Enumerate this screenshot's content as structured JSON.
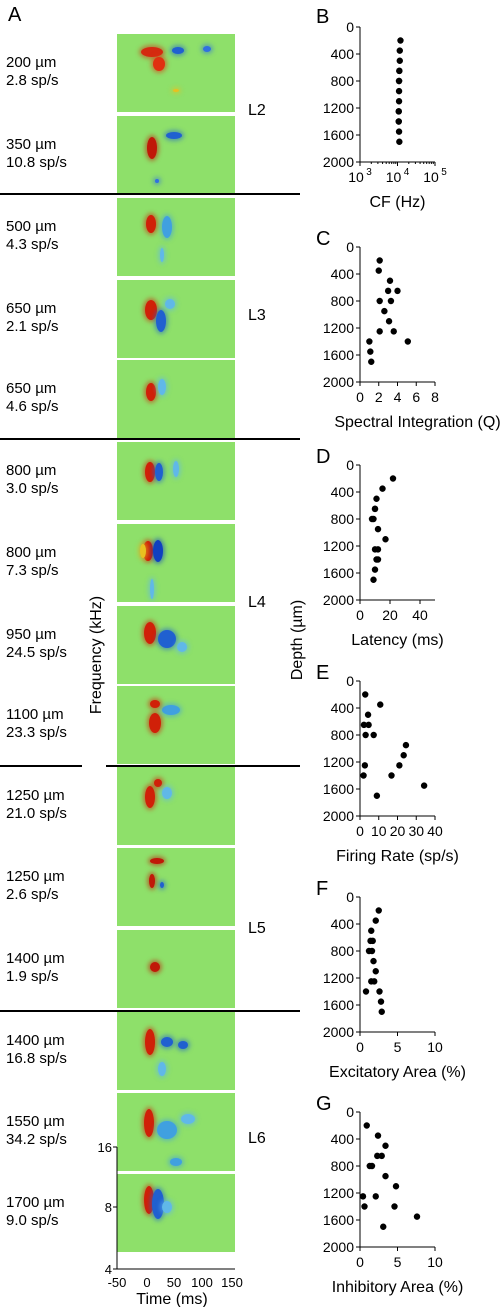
{
  "panel_letters": [
    "A",
    "B",
    "C",
    "D",
    "E",
    "F",
    "G"
  ],
  "layers": [
    "L2",
    "L3",
    "L4",
    "L5",
    "L6"
  ],
  "units": [
    {
      "depth": "200 µm",
      "rate": "2.8 sp/s"
    },
    {
      "depth": "350 µm",
      "rate": "10.8 sp/s"
    },
    {
      "depth": "500 µm",
      "rate": "4.3 sp/s"
    },
    {
      "depth": "650 µm",
      "rate": "2.1 sp/s"
    },
    {
      "depth": "650 µm",
      "rate": "4.6 sp/s"
    },
    {
      "depth": "800 µm",
      "rate": "3.0 sp/s"
    },
    {
      "depth": "800 µm",
      "rate": "7.3 sp/s"
    },
    {
      "depth": "950 µm",
      "rate": "24.5 sp/s"
    },
    {
      "depth": "1100 µm",
      "rate": "23.3 sp/s"
    },
    {
      "depth": "1250 µm",
      "rate": "21.0 sp/s"
    },
    {
      "depth": "1250 µm",
      "rate": "2.6 sp/s"
    },
    {
      "depth": "1400 µm",
      "rate": "1.9 sp/s"
    },
    {
      "depth": "1400 µm",
      "rate": "16.8 sp/s"
    },
    {
      "depth": "1550 µm",
      "rate": "34.2 sp/s"
    },
    {
      "depth": "1700 µm",
      "rate": "9.0 sp/s"
    }
  ],
  "strf_axes": {
    "ylabel": "Frequency (kHz)",
    "xlabel": "Time (ms)",
    "yticks": [
      "16",
      "8",
      "4"
    ],
    "xticks": [
      "-50",
      "0",
      "50",
      "100",
      "150"
    ]
  },
  "shared_ylabel": "Depth (µm)",
  "colors": {
    "strf_background": "#8ee06a",
    "excitation": "#d42a10",
    "inhibition": "#2060d0",
    "marker": "#000000"
  },
  "chart_data": [
    {
      "id": "B",
      "type": "scatter",
      "xlabel": "CF (Hz)",
      "ylabel": "Depth (µm)",
      "xscale": "log",
      "xlim": [
        1000,
        100000
      ],
      "ylim": [
        2000,
        0
      ],
      "xticks": [
        "10",
        "10",
        "10"
      ],
      "xtick_exps": [
        "3",
        "4",
        "5"
      ],
      "yticks": [
        "0",
        "400",
        "800",
        "1200",
        "1600",
        "2000"
      ],
      "points": [
        [
          12000,
          200
        ],
        [
          11500,
          350
        ],
        [
          11500,
          500
        ],
        [
          11200,
          650
        ],
        [
          11200,
          650
        ],
        [
          11000,
          800
        ],
        [
          11000,
          800
        ],
        [
          11000,
          950
        ],
        [
          11000,
          1100
        ],
        [
          10800,
          1250
        ],
        [
          10800,
          1250
        ],
        [
          10800,
          1400
        ],
        [
          10800,
          1400
        ],
        [
          11000,
          1550
        ],
        [
          11200,
          1700
        ]
      ]
    },
    {
      "id": "C",
      "type": "scatter",
      "xlabel": "Spectral Integration (Q)",
      "ylabel": "Depth (µm)",
      "xlim": [
        0,
        8
      ],
      "ylim": [
        2000,
        0
      ],
      "xticks": [
        "0",
        "2",
        "4",
        "6",
        "8"
      ],
      "yticks": [
        "0",
        "400",
        "800",
        "1200",
        "1600",
        "2000"
      ],
      "points": [
        [
          2.1,
          200
        ],
        [
          2.0,
          350
        ],
        [
          3.2,
          500
        ],
        [
          4.0,
          650
        ],
        [
          3.0,
          650
        ],
        [
          2.1,
          800
        ],
        [
          3.3,
          800
        ],
        [
          2.6,
          950
        ],
        [
          3.1,
          1100
        ],
        [
          2.1,
          1250
        ],
        [
          3.6,
          1250
        ],
        [
          1.0,
          1400
        ],
        [
          5.1,
          1400
        ],
        [
          1.1,
          1550
        ],
        [
          1.2,
          1700
        ]
      ]
    },
    {
      "id": "D",
      "type": "scatter",
      "xlabel": "Latency (ms)",
      "ylabel": "Depth (µm)",
      "xlim": [
        0,
        50
      ],
      "ylim": [
        2000,
        0
      ],
      "xticks": [
        "0",
        "20",
        "40"
      ],
      "yticks": [
        "0",
        "400",
        "800",
        "1200",
        "1600",
        "2000"
      ],
      "points": [
        [
          22,
          200
        ],
        [
          15,
          350
        ],
        [
          11,
          500
        ],
        [
          10,
          650
        ],
        [
          10,
          650
        ],
        [
          8,
          800
        ],
        [
          9,
          800
        ],
        [
          12,
          950
        ],
        [
          17,
          1100
        ],
        [
          12,
          1250
        ],
        [
          10,
          1250
        ],
        [
          11,
          1400
        ],
        [
          12,
          1400
        ],
        [
          10,
          1550
        ],
        [
          9,
          1700
        ]
      ]
    },
    {
      "id": "E",
      "type": "scatter",
      "xlabel": "Firing Rate (sp/s)",
      "ylabel": "Depth (µm)",
      "xlim": [
        0,
        40
      ],
      "ylim": [
        2000,
        0
      ],
      "xticks": [
        "0",
        "10",
        "20",
        "30",
        "40"
      ],
      "yticks": [
        "0",
        "400",
        "800",
        "1200",
        "1600",
        "2000"
      ],
      "points": [
        [
          2.8,
          200
        ],
        [
          10.8,
          350
        ],
        [
          4.3,
          500
        ],
        [
          2.1,
          650
        ],
        [
          4.6,
          650
        ],
        [
          3.0,
          800
        ],
        [
          7.3,
          800
        ],
        [
          24.5,
          950
        ],
        [
          23.3,
          1100
        ],
        [
          21.0,
          1250
        ],
        [
          2.6,
          1250
        ],
        [
          1.9,
          1400
        ],
        [
          16.8,
          1400
        ],
        [
          34.2,
          1550
        ],
        [
          9.0,
          1700
        ]
      ]
    },
    {
      "id": "F",
      "type": "scatter",
      "xlabel": "Excitatory Area (%)",
      "ylabel": "Depth (µm)",
      "xlim": [
        0,
        10
      ],
      "ylim": [
        2000,
        0
      ],
      "xticks": [
        "0",
        "5",
        "10"
      ],
      "yticks": [
        "0",
        "400",
        "800",
        "1200",
        "1600",
        "2000"
      ],
      "points": [
        [
          2.5,
          200
        ],
        [
          2.1,
          350
        ],
        [
          1.5,
          500
        ],
        [
          1.4,
          650
        ],
        [
          1.7,
          650
        ],
        [
          1.2,
          800
        ],
        [
          1.6,
          800
        ],
        [
          1.8,
          950
        ],
        [
          2.1,
          1100
        ],
        [
          1.5,
          1250
        ],
        [
          1.9,
          1250
        ],
        [
          0.8,
          1400
        ],
        [
          2.6,
          1400
        ],
        [
          2.8,
          1550
        ],
        [
          2.9,
          1700
        ]
      ]
    },
    {
      "id": "G",
      "type": "scatter",
      "xlabel": "Inhibitory Area (%)",
      "ylabel": "Depth (µm)",
      "xlim": [
        0,
        10
      ],
      "ylim": [
        2000,
        0
      ],
      "xticks": [
        "0",
        "5",
        "10"
      ],
      "yticks": [
        "0",
        "400",
        "800",
        "1200",
        "1600",
        "2000"
      ],
      "points": [
        [
          0.9,
          200
        ],
        [
          2.4,
          350
        ],
        [
          3.4,
          500
        ],
        [
          2.3,
          650
        ],
        [
          2.9,
          650
        ],
        [
          1.3,
          800
        ],
        [
          1.6,
          800
        ],
        [
          3.4,
          950
        ],
        [
          4.8,
          1100
        ],
        [
          0.4,
          1250
        ],
        [
          2.1,
          1250
        ],
        [
          0.6,
          1400
        ],
        [
          4.6,
          1400
        ],
        [
          7.6,
          1550
        ],
        [
          3.1,
          1700
        ]
      ]
    }
  ]
}
